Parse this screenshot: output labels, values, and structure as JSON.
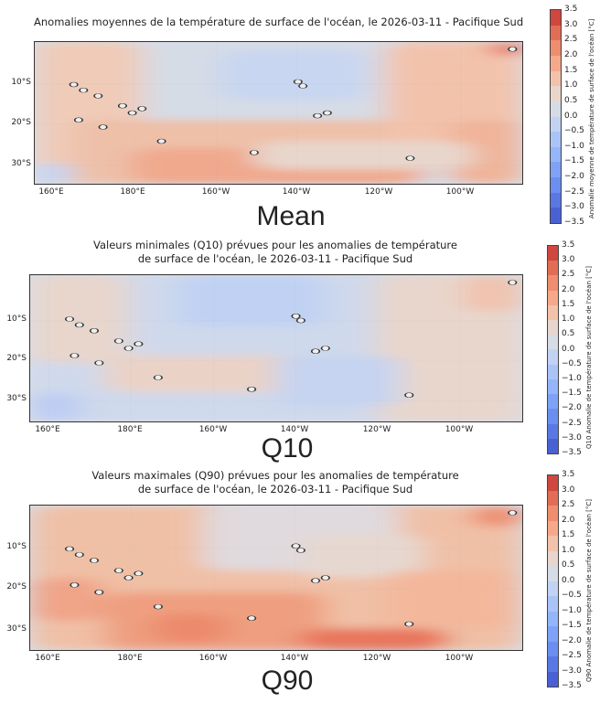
{
  "chart_data": [
    {
      "type": "heatmap",
      "title": "Anomalies moyennes de la température de surface de l'océan, le 2026-03-11 - Pacifique Sud",
      "caption": "Mean",
      "colorbar_label": "Anomalie moyenne de température de surface de l'océan [°C]",
      "lat_ticks": [
        "10°S",
        "20°S",
        "30°S"
      ],
      "lon_ticks": [
        "160°E",
        "180°E",
        "160°W",
        "140°W",
        "120°W",
        "100°W"
      ],
      "lat_range": [
        -34.5,
        0.5
      ],
      "lon_range": [
        155.7,
        275
      ]
    },
    {
      "type": "heatmap",
      "title": "Valeurs minimales (Q10) prévues pour les anomalies de température\nde surface de l'océan, le 2026-03-11 - Pacifique Sud",
      "caption": "Q10",
      "colorbar_label": "Q10 Anomalie de température de surface de l'océan [°C]",
      "lat_ticks": [
        "10°S",
        "20°S",
        "30°S"
      ],
      "lon_ticks": [
        "160°E",
        "180°E",
        "160°W",
        "140°W",
        "120°W",
        "100°W"
      ],
      "lat_range": [
        -34.5,
        0.5
      ],
      "lon_range": [
        155.7,
        275
      ]
    },
    {
      "type": "heatmap",
      "title": "Valeurs maximales (Q90) prévues pour les anomalies de température\nde surface de l'océan, le 2026-03-11 - Pacifique Sud",
      "caption": "Q90",
      "colorbar_label": "Q90 Anomalie de température de surface de l'océan [°C]",
      "lat_ticks": [
        "10°S",
        "20°S",
        "30°S"
      ],
      "lon_ticks": [
        "160°E",
        "180°E",
        "160°W",
        "140°W",
        "120°W",
        "100°W"
      ],
      "lat_range": [
        -34.5,
        0.5
      ],
      "lon_range": [
        155.7,
        275
      ]
    }
  ],
  "colorbar": {
    "ticks": [
      "3.5",
      "3.0",
      "2.5",
      "2.0",
      "1.5",
      "1.0",
      "0.5",
      "0.0",
      "−0.5",
      "−1.0",
      "−1.5",
      "−2.0",
      "−2.5",
      "−3.0",
      "−3.5"
    ],
    "range": [
      -3.5,
      3.5
    ],
    "colors": [
      "#4a61d4",
      "#5a78e4",
      "#6b8ef0",
      "#7fa2f7",
      "#95b5fb",
      "#abc4f8",
      "#c2d2f2",
      "#d6dce6",
      "#e8d6cc",
      "#f3c2ab",
      "#f5a98b",
      "#ef8e6e",
      "#e26d55",
      "#cf473e"
    ]
  }
}
